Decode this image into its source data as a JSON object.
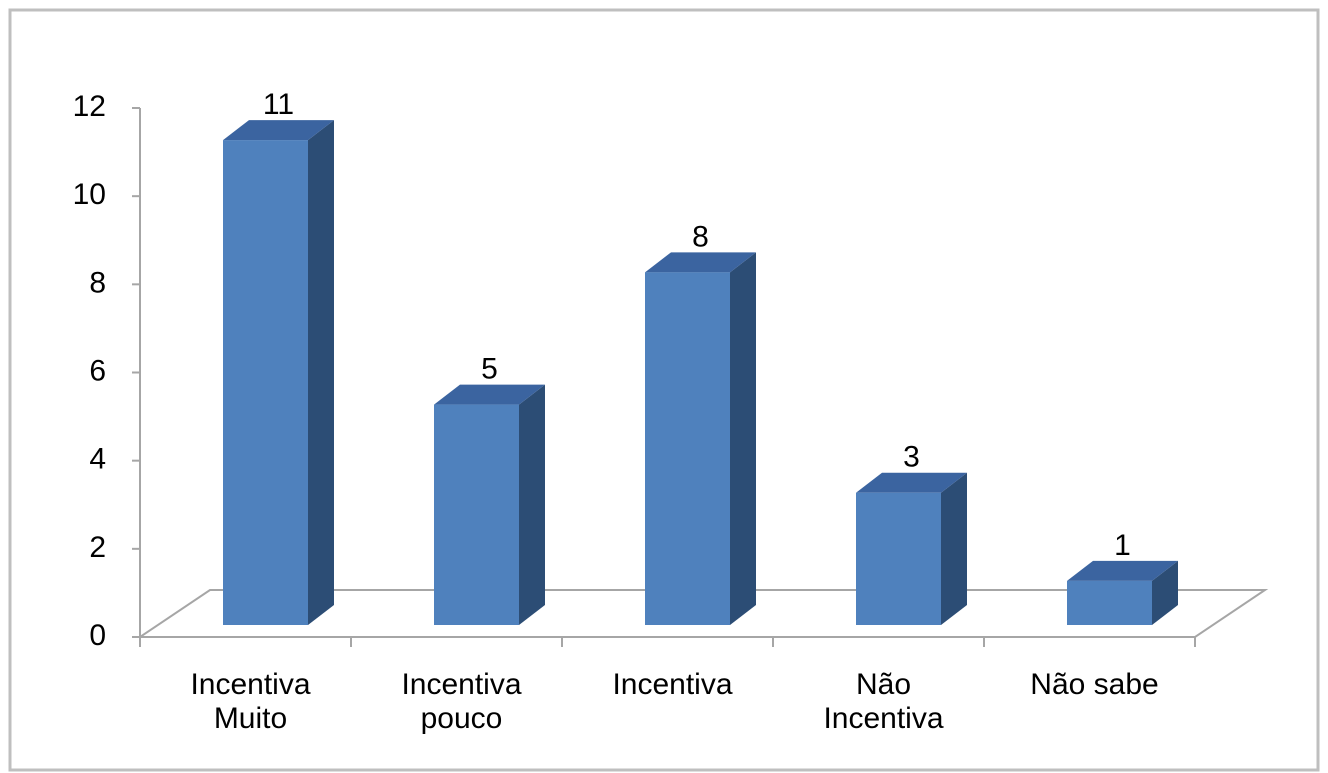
{
  "chart_data": {
    "type": "bar3d",
    "categories": [
      "Incentiva Muito",
      "Incentiva pouco",
      "Incentiva",
      "Não Incentiva",
      "Não sabe"
    ],
    "values": [
      11,
      5,
      8,
      3,
      1
    ],
    "color": "#4f81bd",
    "ylim": [
      0,
      12
    ],
    "yticks": [
      0,
      2,
      4,
      6,
      8,
      10,
      12
    ]
  }
}
